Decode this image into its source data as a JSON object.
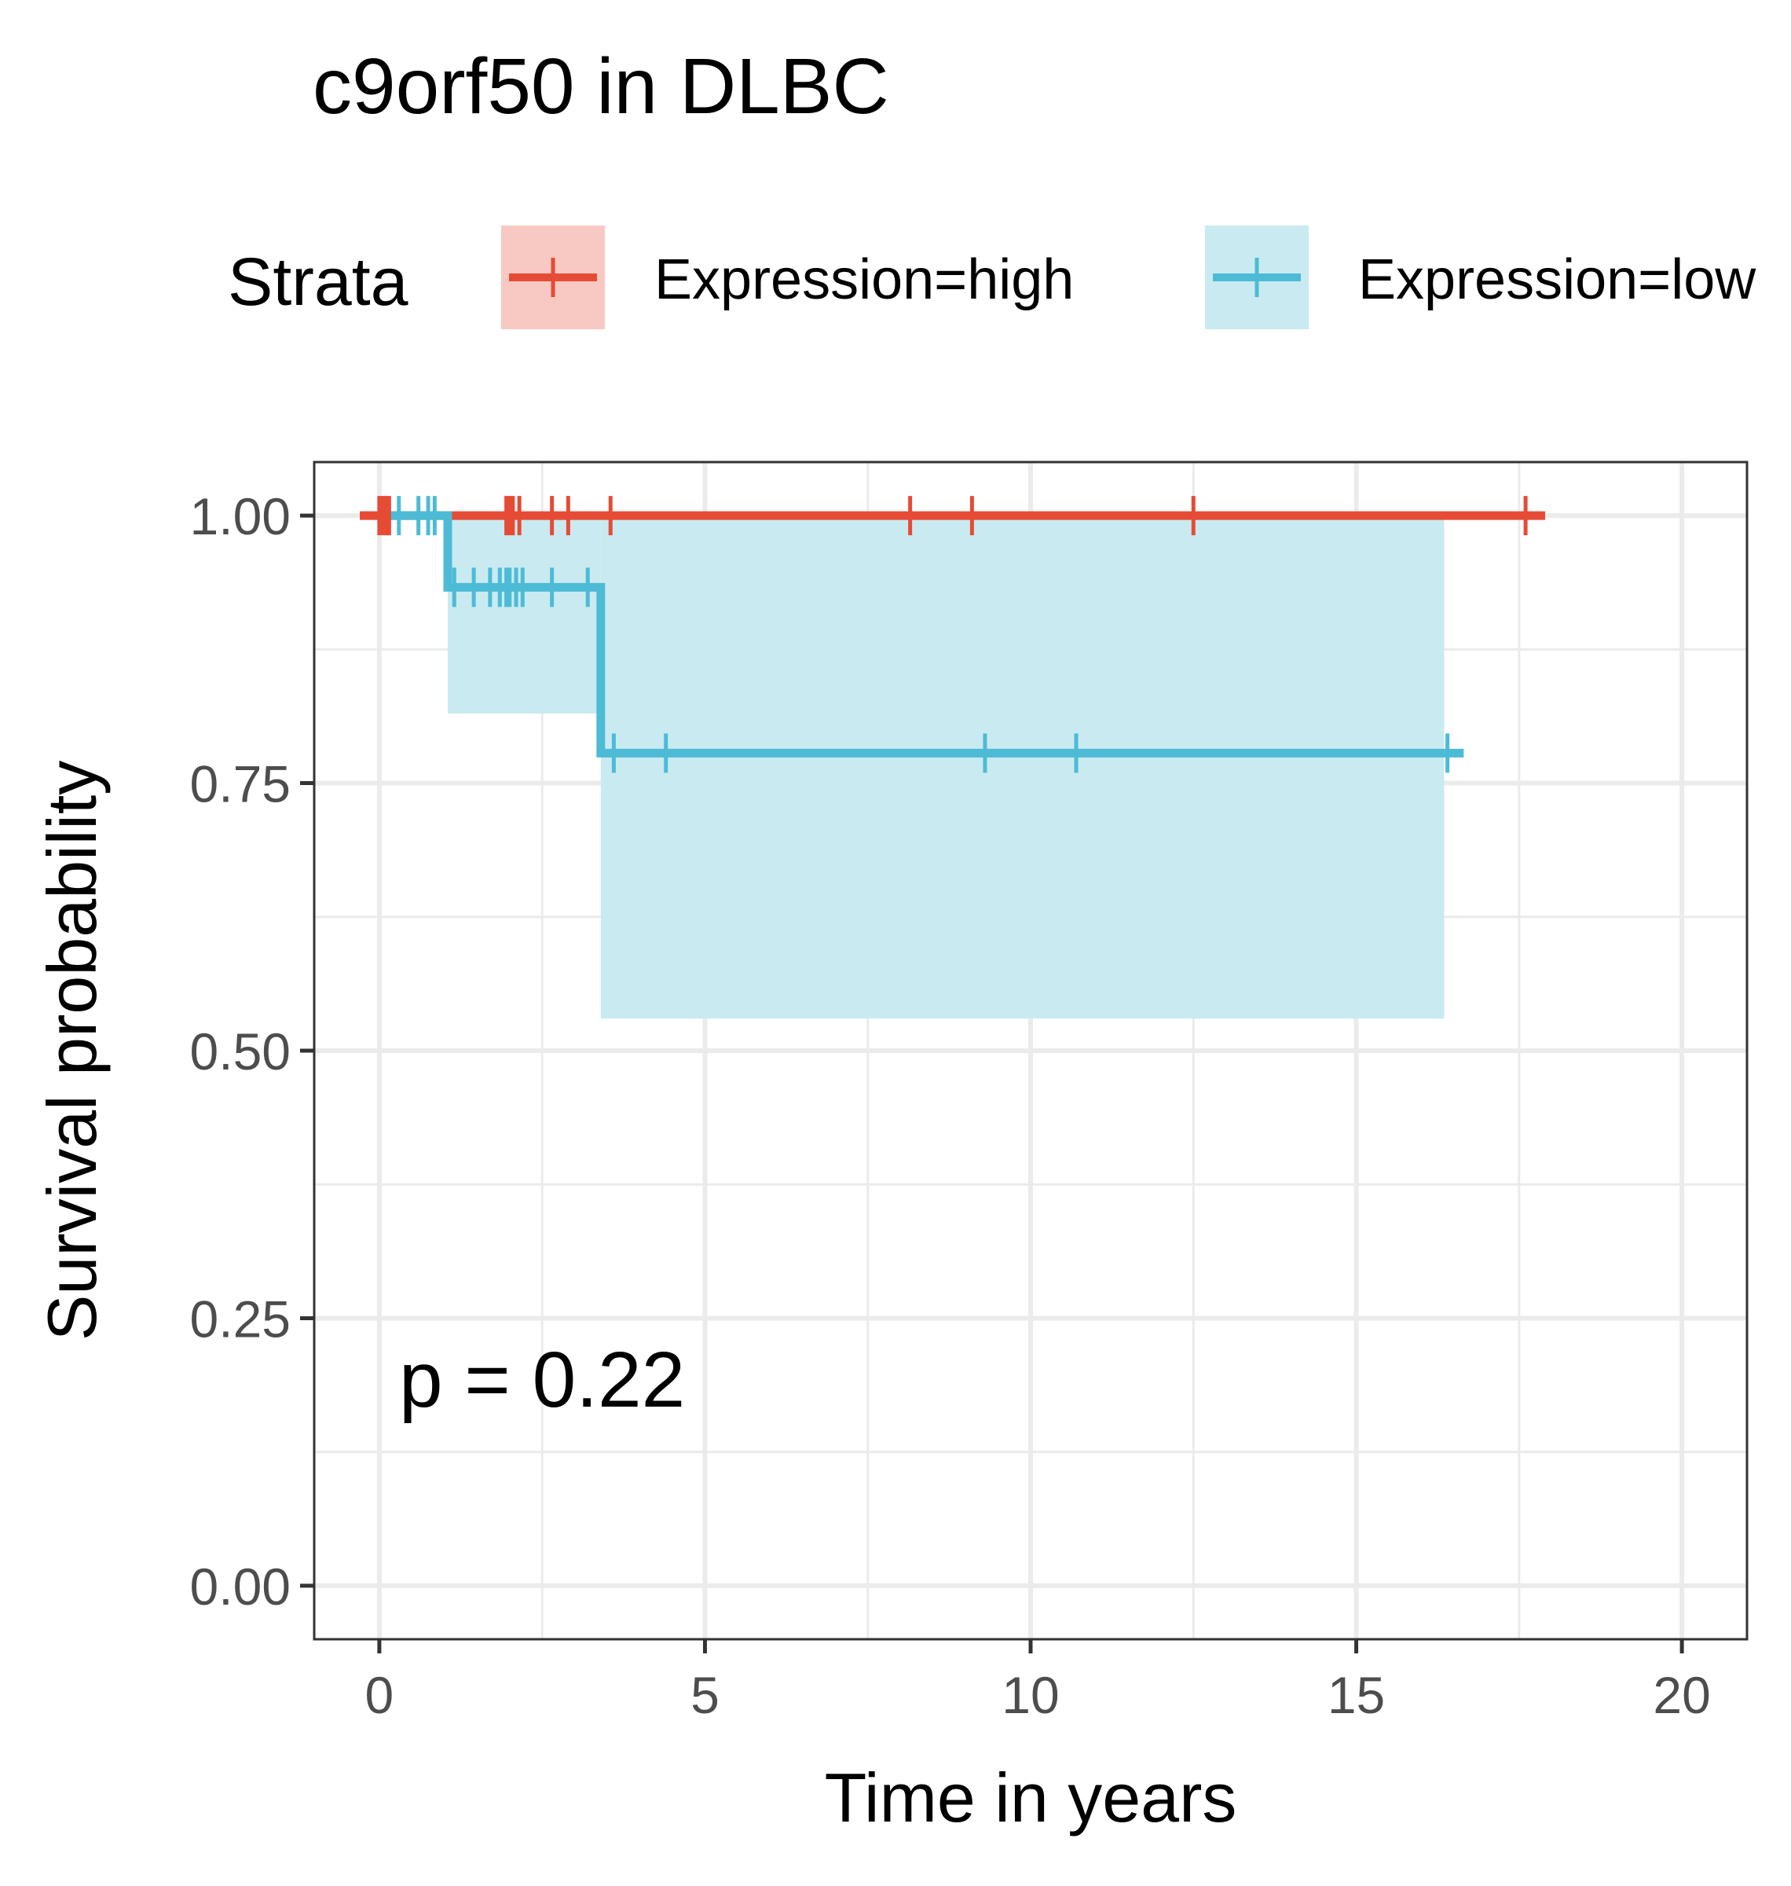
{
  "chart_data": {
    "type": "line",
    "subtype": "kaplan-meier",
    "title": "c9orf50 in DLBC",
    "xlabel": "Time in years",
    "ylabel": "Survival probability",
    "xlim": [
      -1,
      21
    ],
    "ylim": [
      -0.05,
      1.05
    ],
    "x_ticks": [
      "0",
      "5",
      "10",
      "15",
      "20"
    ],
    "y_ticks": [
      "0.00",
      "0.25",
      "0.50",
      "0.75",
      "1.00"
    ],
    "grid": true,
    "legend": {
      "title": "Strata",
      "placement": "top",
      "entries": [
        "Expression=high",
        "Expression=low"
      ]
    },
    "annotation": "p = 0.22",
    "series": [
      {
        "name": "Expression=high",
        "color": "#E64B35",
        "fill": "#F8C9C2",
        "steps": [
          [
            -0.3,
            1.0
          ],
          [
            17.9,
            1.0
          ]
        ],
        "ci": [],
        "censor_x": [
          0.0,
          0.05,
          0.1,
          0.15,
          1.95,
          2.0,
          2.05,
          2.15,
          2.65,
          2.9,
          3.55,
          8.15,
          9.1,
          12.5,
          17.6
        ]
      },
      {
        "name": "Expression=low",
        "color": "#4DBBD5",
        "fill": "#C9EAF1",
        "steps": [
          [
            0.05,
            1.0
          ],
          [
            1.05,
            1.0
          ],
          [
            1.05,
            0.933
          ],
          [
            3.4,
            0.933
          ],
          [
            3.4,
            0.778
          ],
          [
            16.65,
            0.778
          ]
        ],
        "ci": [
          [
            1.05,
            3.4,
            0.815,
            1.0
          ],
          [
            3.4,
            16.35,
            0.53,
            1.0
          ]
        ],
        "censor_x": [
          0.3,
          0.6,
          0.75,
          0.85,
          1.15,
          1.45,
          1.7,
          1.85,
          1.95,
          2.0,
          2.1,
          2.2,
          2.65,
          3.2,
          3.6,
          4.4,
          9.3,
          10.7,
          16.4
        ]
      }
    ]
  }
}
